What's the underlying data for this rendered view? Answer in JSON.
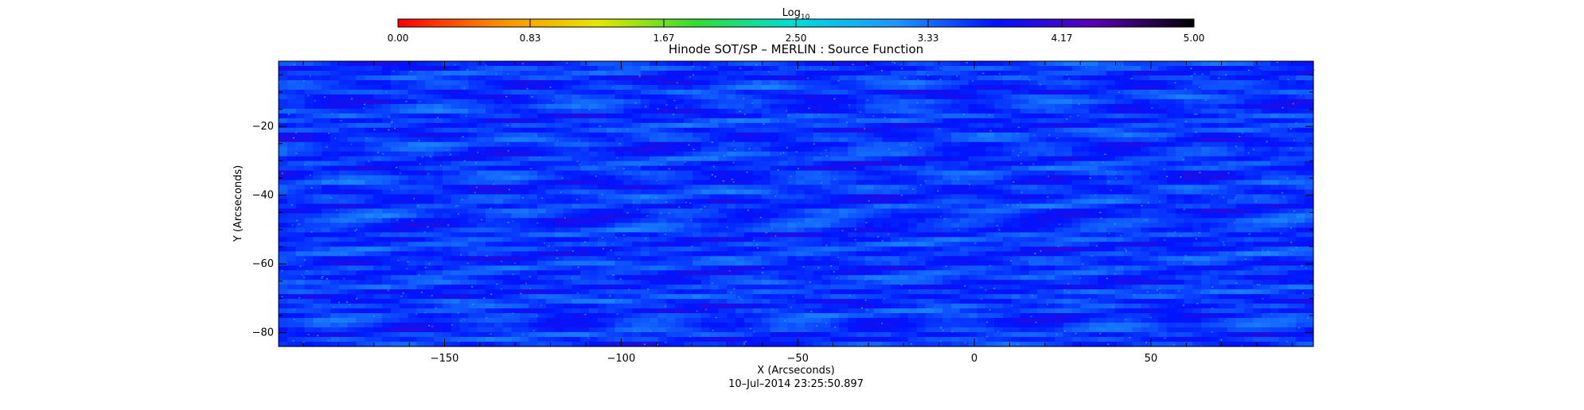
{
  "chart_data": {
    "type": "heatmap",
    "title": "Hinode SOT/SP – MERLIN : Source Function",
    "xlabel": "X (Arcseconds)",
    "ylabel": "Y (Arcseconds)",
    "footer": "10–Jul–2014 23:25:50.897",
    "xlim": [
      -197,
      96
    ],
    "ylim": [
      -84,
      -1
    ],
    "x_ticks": [
      -150,
      -100,
      -50,
      0,
      50
    ],
    "x_tick_labels": [
      "−150",
      "−100",
      "−50",
      "0",
      "50"
    ],
    "y_ticks": [
      -20,
      -40,
      -60,
      -80
    ],
    "y_tick_labels": [
      "−20",
      "−40",
      "−60",
      "−80"
    ],
    "colorbar": {
      "label_base": "Log",
      "label_subscript": "10",
      "range": [
        0,
        5
      ],
      "ticks": [
        0.0,
        0.83,
        1.67,
        2.5,
        3.33,
        4.17,
        5.0
      ],
      "tick_labels": [
        "0.00",
        "0.83",
        "1.67",
        "2.50",
        "3.33",
        "4.17",
        "5.00"
      ],
      "colors": [
        "#ff0000",
        "#ff8c00",
        "#e6e600",
        "#32dc32",
        "#00dcdc",
        "#1e96ff",
        "#0014ff",
        "#5a00b4",
        "#000000"
      ]
    },
    "field": {
      "typical_value": 3.6,
      "value_range": [
        3.2,
        4.0
      ],
      "pattern": "streaks elongated along x"
    }
  }
}
